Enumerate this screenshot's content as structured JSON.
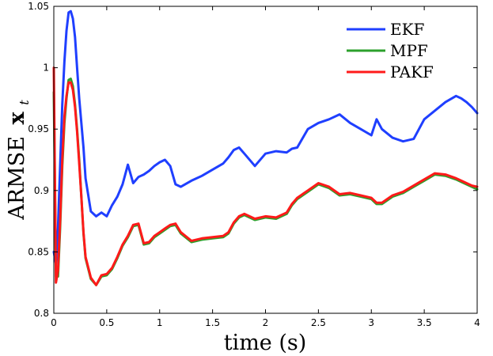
{
  "chart_data": {
    "type": "line",
    "xlabel": "time (s)",
    "ylabel": "ARMSE",
    "ylabel_symbol": "x",
    "ylabel_subscript": "t",
    "xlim": [
      0,
      4
    ],
    "ylim": [
      0.8,
      1.05
    ],
    "xticks": [
      "0",
      "0.5",
      "1",
      "1.5",
      "2",
      "2.5",
      "3",
      "3.5",
      "4"
    ],
    "xtick_values": [
      0,
      0.5,
      1,
      1.5,
      2,
      2.5,
      3,
      3.5,
      4
    ],
    "yticks": [
      "0.8",
      "0.85",
      "0.9",
      "0.95",
      "1",
      "1.05"
    ],
    "ytick_values": [
      0.8,
      0.85,
      0.9,
      0.95,
      1.0,
      1.05
    ],
    "grid": false,
    "legend_position": "top-right",
    "x": [
      0,
      0.02,
      0.04,
      0.06,
      0.08,
      0.1,
      0.12,
      0.14,
      0.16,
      0.18,
      0.2,
      0.22,
      0.24,
      0.26,
      0.28,
      0.3,
      0.35,
      0.4,
      0.45,
      0.5,
      0.55,
      0.6,
      0.65,
      0.7,
      0.75,
      0.8,
      0.85,
      0.9,
      0.95,
      1.0,
      1.05,
      1.1,
      1.15,
      1.2,
      1.3,
      1.4,
      1.5,
      1.6,
      1.65,
      1.7,
      1.75,
      1.8,
      1.9,
      2.0,
      2.1,
      2.2,
      2.25,
      2.3,
      2.4,
      2.5,
      2.6,
      2.7,
      2.8,
      2.9,
      3.0,
      3.05,
      3.1,
      3.2,
      3.3,
      3.4,
      3.5,
      3.6,
      3.7,
      3.8,
      3.85,
      3.9,
      3.95,
      4.0
    ],
    "series": [
      {
        "name": "EKF",
        "color": "#1f3fff",
        "values": [
          0.85,
          0.84,
          0.87,
          0.92,
          0.97,
          1.005,
          1.03,
          1.045,
          1.046,
          1.04,
          1.025,
          1.0,
          0.975,
          0.955,
          0.935,
          0.91,
          0.883,
          0.879,
          0.882,
          0.879,
          0.888,
          0.895,
          0.905,
          0.921,
          0.906,
          0.911,
          0.913,
          0.916,
          0.92,
          0.923,
          0.925,
          0.92,
          0.905,
          0.903,
          0.908,
          0.912,
          0.917,
          0.922,
          0.927,
          0.933,
          0.935,
          0.93,
          0.92,
          0.93,
          0.932,
          0.931,
          0.934,
          0.935,
          0.95,
          0.955,
          0.958,
          0.962,
          0.955,
          0.95,
          0.945,
          0.958,
          0.95,
          0.943,
          0.94,
          0.942,
          0.958,
          0.965,
          0.972,
          0.977,
          0.975,
          0.972,
          0.968,
          0.963
        ]
      },
      {
        "name": "MPF",
        "color": "#2ca02c",
        "values": [
          0.98,
          0.83,
          0.83,
          0.87,
          0.92,
          0.955,
          0.975,
          0.99,
          0.991,
          0.985,
          0.97,
          0.95,
          0.925,
          0.895,
          0.865,
          0.845,
          0.828,
          0.823,
          0.83,
          0.831,
          0.836,
          0.845,
          0.855,
          0.862,
          0.871,
          0.872,
          0.856,
          0.857,
          0.862,
          0.865,
          0.868,
          0.871,
          0.872,
          0.865,
          0.858,
          0.86,
          0.861,
          0.862,
          0.865,
          0.873,
          0.878,
          0.88,
          0.876,
          0.878,
          0.877,
          0.881,
          0.888,
          0.893,
          0.899,
          0.905,
          0.902,
          0.896,
          0.897,
          0.895,
          0.893,
          0.889,
          0.889,
          0.895,
          0.898,
          0.903,
          0.908,
          0.913,
          0.912,
          0.909,
          0.907,
          0.905,
          0.903,
          0.901
        ]
      },
      {
        "name": "PAKF",
        "color": "#ff1a1a",
        "values": [
          1.0,
          0.825,
          0.835,
          0.875,
          0.925,
          0.96,
          0.977,
          0.988,
          0.988,
          0.982,
          0.968,
          0.948,
          0.922,
          0.895,
          0.866,
          0.846,
          0.829,
          0.823,
          0.831,
          0.832,
          0.837,
          0.846,
          0.856,
          0.863,
          0.872,
          0.873,
          0.857,
          0.858,
          0.863,
          0.866,
          0.869,
          0.872,
          0.873,
          0.866,
          0.859,
          0.861,
          0.862,
          0.863,
          0.866,
          0.874,
          0.879,
          0.881,
          0.877,
          0.879,
          0.878,
          0.882,
          0.889,
          0.894,
          0.9,
          0.906,
          0.903,
          0.897,
          0.898,
          0.896,
          0.894,
          0.89,
          0.89,
          0.896,
          0.899,
          0.904,
          0.909,
          0.914,
          0.913,
          0.91,
          0.908,
          0.906,
          0.904,
          0.903
        ]
      }
    ]
  }
}
